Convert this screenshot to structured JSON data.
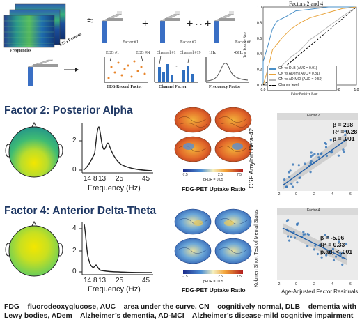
{
  "schematic": {
    "frequencies_label": "Frequencies",
    "eeg_records_label": "EEG Records",
    "approx_symbol": "≈",
    "plus": "+",
    "dots": "· · ·",
    "factor_labels": [
      "Factor #1",
      "Factor #2",
      "Factor #6"
    ],
    "eeg_record_factor": {
      "caption": "EEG Record Factor",
      "left_label": "EEG #1",
      "right_label": "EEG #N"
    },
    "channel_factor": {
      "caption": "Channel Factor",
      "left_label": "Channel #1",
      "right_label": "Channel #19",
      "dots": "…"
    },
    "frequency_factor": {
      "caption": "Frequency Factor",
      "left_label": "1Hz",
      "right_label": "45Hz"
    }
  },
  "roc": {
    "title": "Factors 2 and 4",
    "xlabel": "False Positive Rate",
    "ylabel": "True Positive Rate",
    "ticks": [
      "0.0",
      "0.2",
      "0.4",
      "0.6",
      "0.8",
      "1.0"
    ],
    "legend": [
      "CN vs DLB (AUC = 0.91)",
      "CN vs ADem (AUC = 0.81)",
      "CN vs AD-MCI (AUC = 0.59)",
      "Chance level"
    ],
    "colors": [
      "#4a90c8",
      "#e8a33a",
      "#b8b8b8",
      "#000000"
    ]
  },
  "factor2": {
    "title": "Factor 2: Posterior Alpha",
    "spectrum": {
      "y_ticks": [
        "2",
        "0"
      ],
      "x_ticks": [
        "14",
        "8",
        "13",
        "25",
        "45"
      ],
      "xlabel": "Frequency (Hz)"
    },
    "pet": {
      "colorbar_ticks": [
        "-7.5",
        "2.5",
        "7.5"
      ],
      "p_label": "pFDR = 0.05",
      "caption": "FDG-PET Uptake Ratio"
    },
    "scatter": {
      "panel_title": "Factor 2",
      "ylabel": "CSF Amyloid Beta-42",
      "stats": [
        "β = 298",
        "R² = 0.28",
        "p = .001"
      ],
      "x_ticks": [
        "-2",
        "0",
        "2",
        "4",
        "6"
      ]
    }
  },
  "factor4": {
    "title": "Factor 4: Anterior Delta-Theta",
    "spectrum": {
      "y_ticks": [
        "4",
        "2",
        "0"
      ],
      "x_ticks": [
        "14",
        "8",
        "13",
        "25",
        "45"
      ],
      "xlabel": "Frequency (Hz)"
    },
    "pet": {
      "colorbar_ticks": [
        "-7.5",
        "2.5",
        "7.5"
      ],
      "p_label": "pFDR = 0.05",
      "caption": "FDG-PET Uptake Ratio"
    },
    "scatter": {
      "panel_title": "Factor 4",
      "ylabel": "Kokmen Short Test of Mental Status",
      "xlabel": "Age-Adjusted Factor Residuals",
      "stats": [
        "β = -5.06",
        "R² = 0.33",
        "p.adj < .001"
      ],
      "x_ticks": [
        "-2",
        "0",
        "2",
        "4",
        "6"
      ]
    }
  },
  "footer": "FDG – fluorodeoxyglucose, AUC – area under the curve, CN – cognitively normal, DLB – dementia with Lewy bodies, ADem – Alzheimer’s dementia, AD-MCI – Alzheimer’s disease-mild cognitive impairment"
}
